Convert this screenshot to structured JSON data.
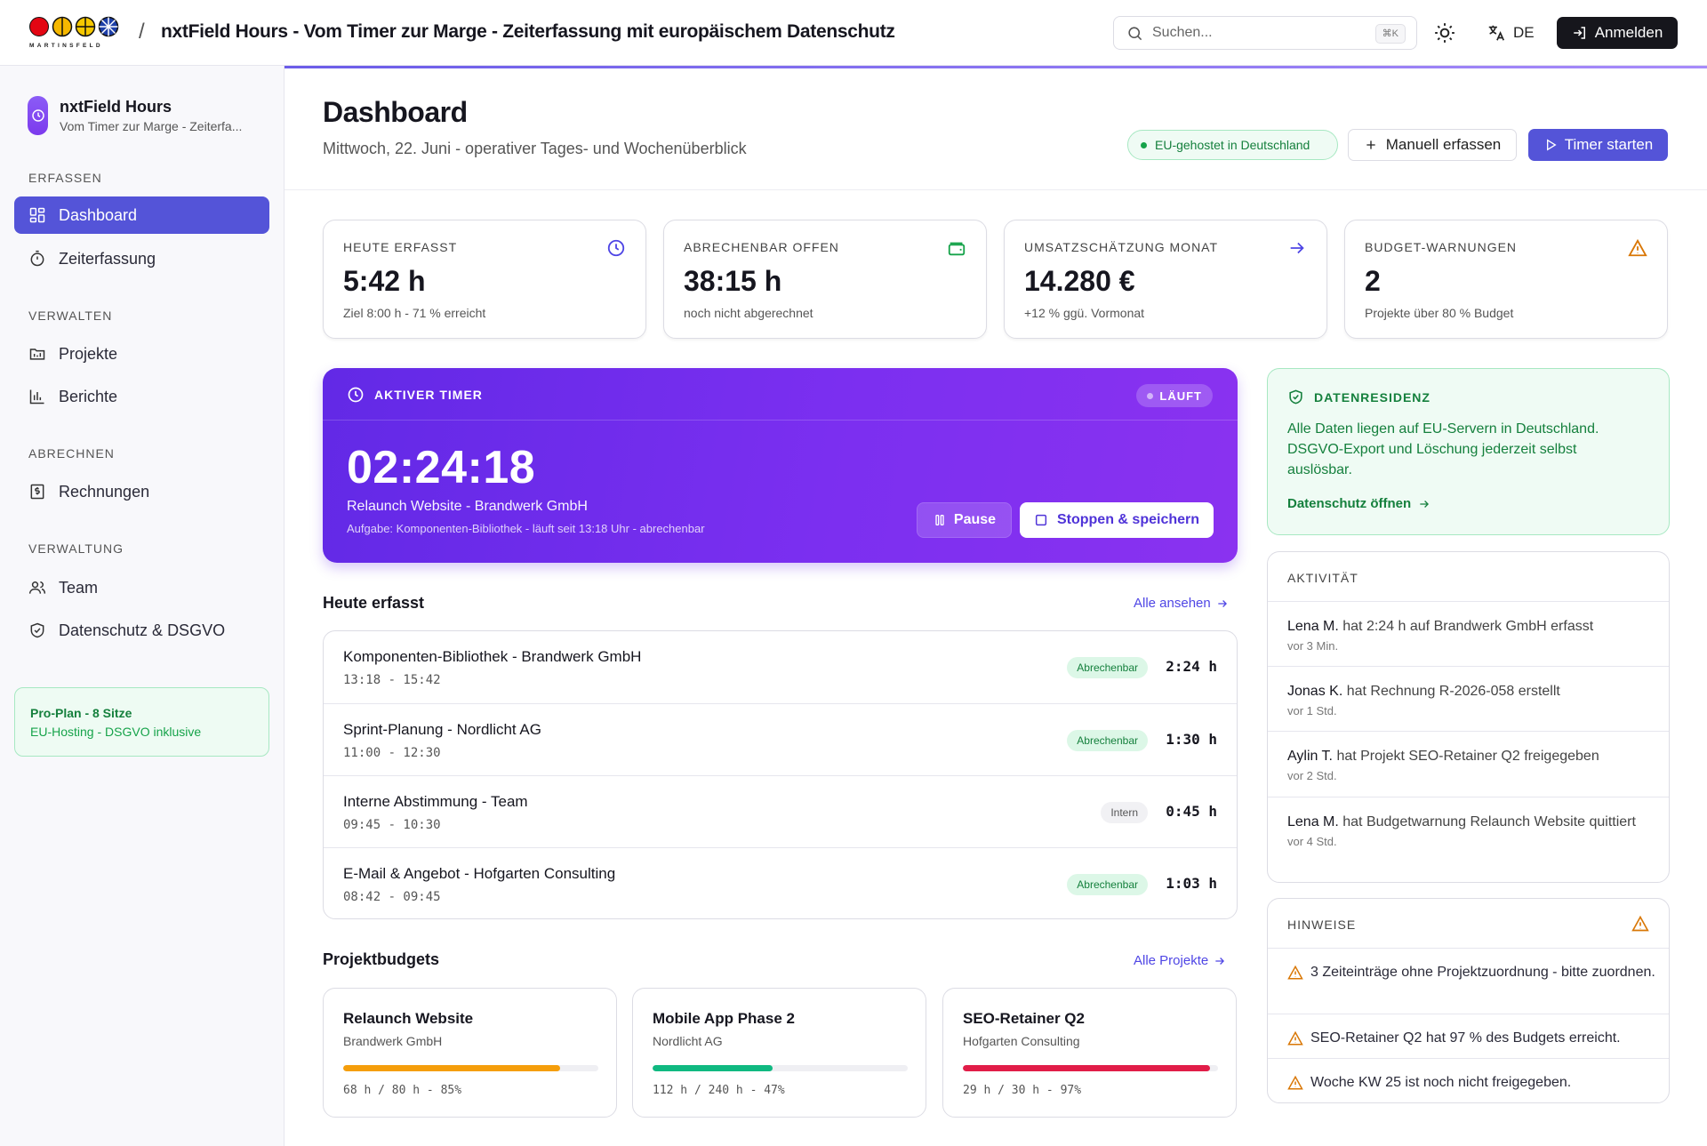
{
  "topbar": {
    "logo_text": "MARTINSFELD",
    "separator": "/",
    "title": "nxtField Hours - Vom Timer zur Marge - Zeiterfassung mit europäischem Datenschutz",
    "search_placeholder": "Suchen...",
    "search_shortcut": "⌘K",
    "language": "DE",
    "login_label": "Anmelden"
  },
  "sidebar": {
    "brand_name": "nxtField Hours",
    "brand_sub": "Vom Timer zur Marge - Zeiterfa...",
    "sections": [
      {
        "label": "ERFASSEN"
      },
      {
        "label": "VERWALTEN"
      },
      {
        "label": "ABRECHNEN"
      },
      {
        "label": "VERWALTUNG"
      }
    ],
    "items": [
      {
        "label": "Dashboard",
        "icon": "grid-icon"
      },
      {
        "label": "Zeiterfassung",
        "icon": "stopwatch-icon"
      },
      {
        "label": "Projekte",
        "icon": "folder-icon"
      },
      {
        "label": "Berichte",
        "icon": "bar-chart-icon"
      },
      {
        "label": "Rechnungen",
        "icon": "invoice-icon"
      },
      {
        "label": "Team",
        "icon": "users-icon"
      },
      {
        "label": "Datenschutz & DSGVO",
        "icon": "shield-check-icon"
      }
    ],
    "plan_title": "Pro-Plan - 8 Sitze",
    "plan_sub": "EU-Hosting - DSGVO inklusive"
  },
  "header": {
    "title": "Dashboard",
    "subtitle": "Mittwoch, 22. Juni - operativer Tages- und Wochenüberblick",
    "eu_badge": "EU-gehostet in Deutschland",
    "manual_label": "Manuell erfassen",
    "timer_label": "Timer starten"
  },
  "kpis": [
    {
      "label": "HEUTE ERFASST",
      "value": "5:42 h",
      "sub": "Ziel 8:00 h - 71 % erreicht",
      "icon": "clock-icon",
      "color": "#4f46e5"
    },
    {
      "label": "ABRECHENBAR OFFEN",
      "value": "38:15 h",
      "sub": "noch nicht abgerechnet",
      "icon": "wallet-icon",
      "color": "#16a34a"
    },
    {
      "label": "UMSATZSCHÄTZUNG MONAT",
      "value": "14.280 €",
      "sub": "+12 % ggü. Vormonat",
      "icon": "arrow-right-icon",
      "color": "#4f46e5"
    },
    {
      "label": "BUDGET-WARNUNGEN",
      "value": "2",
      "sub": "Projekte über 80 % Budget",
      "icon": "warning-icon",
      "color": "#d97706"
    }
  ],
  "active_timer": {
    "label": "AKTIVER TIMER",
    "status": "LÄUFT",
    "time": "02:24:18",
    "project": "Relaunch Website - Brandwerk GmbH",
    "task": "Aufgabe: Komponenten-Bibliothek - läuft seit 13:18 Uhr - abrechenbar",
    "pause_label": "Pause",
    "stop_label": "Stoppen & speichern"
  },
  "today": {
    "title": "Heute erfasst",
    "link": "Alle ansehen",
    "entries": [
      {
        "title": "Komponenten-Bibliothek - Brandwerk GmbH",
        "time": "13:18 - 15:42",
        "tag": "Abrechenbar",
        "duration": "2:24 h"
      },
      {
        "title": "Sprint-Planung - Nordlicht AG",
        "time": "11:00 - 12:30",
        "tag": "Abrechenbar",
        "duration": "1:30 h"
      },
      {
        "title": "Interne Abstimmung - Team",
        "time": "09:45 - 10:30",
        "tag": "Intern",
        "duration": "0:45 h"
      },
      {
        "title": "E-Mail & Angebot - Hofgarten Consulting",
        "time": "08:42 - 09:45",
        "tag": "Abrechenbar",
        "duration": "1:03 h"
      }
    ]
  },
  "budgets": {
    "title": "Projektbudgets",
    "link": "Alle Projekte",
    "items": [
      {
        "title": "Relaunch Website",
        "client": "Brandwerk GmbH",
        "meta": "68 h / 80 h - 85%",
        "percent": 85,
        "color": "#f59e0b"
      },
      {
        "title": "Mobile App Phase 2",
        "client": "Nordlicht AG",
        "meta": "112 h / 240 h - 47%",
        "percent": 47,
        "color": "#10b981"
      },
      {
        "title": "SEO-Retainer Q2",
        "client": "Hofgarten Consulting",
        "meta": "29 h / 30 h - 97%",
        "percent": 97,
        "color": "#e11d48"
      }
    ]
  },
  "residency": {
    "title": "DATENRESIDENZ",
    "text": "Alle Daten liegen auf EU-Servern in Deutschland. DSGVO-Export und Löschung jederzeit selbst auslösbar.",
    "link": "Datenschutz öffnen"
  },
  "activity": {
    "title": "AKTIVITÄT",
    "items": [
      {
        "who": "Lena M.",
        "text": " hat 2:24 h auf Brandwerk GmbH erfasst",
        "when": "vor 3 Min."
      },
      {
        "who": "Jonas K.",
        "text": " hat Rechnung R-2026-058 erstellt",
        "when": "vor 1 Std."
      },
      {
        "who": "Aylin T.",
        "text": " hat Projekt SEO-Retainer Q2 freigegeben",
        "when": "vor 2 Std."
      },
      {
        "who": "Lena M.",
        "text": " hat Budgetwarnung Relaunch Website quittiert",
        "when": "vor 4 Std."
      }
    ]
  },
  "hints": {
    "title": "HINWEISE",
    "items": [
      {
        "text": "3 Zeiteinträge ohne Projektzuordnung - bitte zuordnen."
      },
      {
        "text": "SEO-Retainer Q2 hat 97 % des Budgets erreicht."
      },
      {
        "text": "Woche KW 25 ist noch nicht freigegeben."
      }
    ]
  }
}
